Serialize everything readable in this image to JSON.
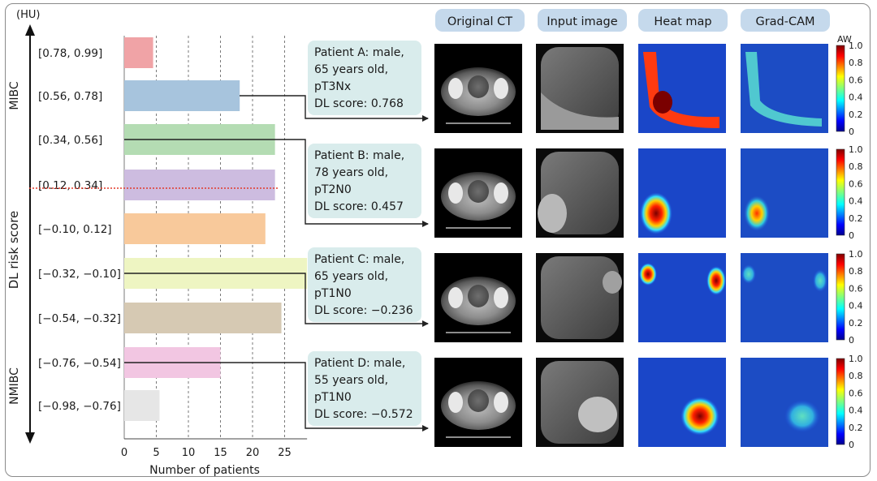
{
  "chart_data": {
    "type": "bar",
    "orientation": "horizontal",
    "y_unit": "(HU)",
    "ylabel": "DL risk score",
    "xlabel": "Number of patients",
    "x_ticks": [
      0,
      5,
      10,
      15,
      20,
      25
    ],
    "xlim": [
      0,
      28.5
    ],
    "grid": "vertical dashed",
    "group_labels": [
      "MIBC",
      "NMIBC"
    ],
    "categories": [
      "[0.78, 0.99]",
      "[0.56, 0.78]",
      "[0.34, 0.56]",
      "[0.12, 0.34]",
      "[−0.10, 0.12]",
      "[−0.32, −0.10]",
      "[−0.54, −0.32]",
      "[−0.76, −0.54]",
      "[−0.98, −0.76]"
    ],
    "values": [
      4.5,
      18,
      23.5,
      23.5,
      22,
      28.5,
      24.5,
      15,
      5.5
    ],
    "bar_colors": [
      "#f0a3a6",
      "#a7c4dd",
      "#b4dcb3",
      "#cdbce0",
      "#f8c99b",
      "#eef5c2",
      "#d6c9b3",
      "#f2c6e2",
      "#e6e6e6"
    ],
    "threshold_between": [
      "[0.12, 0.34]"
    ]
  },
  "colors": {
    "threshold": "#e23a2a",
    "pill": "#c5d9ec",
    "info_box": "#d9ecec",
    "grid": "#7a7a7a"
  },
  "columns": [
    "Original CT",
    "Input image",
    "Heat map",
    "Grad-CAM"
  ],
  "patients": [
    {
      "lines": [
        "Patient A: male,",
        "65 years old,",
        "pT3Nx",
        "DL score: 0.768"
      ],
      "bar_index": 1
    },
    {
      "lines": [
        "Patient B: male,",
        "78 years old,",
        "pT2N0",
        "DL score: 0.457"
      ],
      "bar_index": 2
    },
    {
      "lines": [
        "Patient C: male,",
        "65 years old,",
        "pT1N0",
        "DL score: −0.236"
      ],
      "bar_index": 5
    },
    {
      "lines": [
        "Patient D: male,",
        "55 years old,",
        "pT1N0",
        "DL score: −0.572"
      ],
      "bar_index": 7
    }
  ],
  "colorbar": {
    "title": "AW",
    "ticks": [
      "1.0",
      "0.8",
      "0.6",
      "0.4",
      "0.2",
      "0"
    ]
  }
}
